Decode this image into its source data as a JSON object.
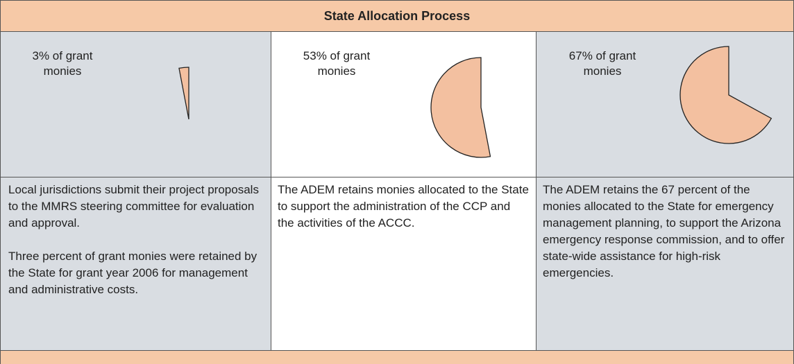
{
  "header": {
    "title": "State Allocation Process"
  },
  "columns": [
    {
      "label": "3% of grant monies",
      "percent": 3,
      "paragraphs": [
        "Local jurisdictions submit their project proposals to the MMRS steering committee for evaluation and approval.",
        "Three percent of grant monies were retained by the State for grant year 2006 for management and administrative costs."
      ]
    },
    {
      "label": "53% of grant monies",
      "percent": 53,
      "paragraphs": [
        "The ADEM retains monies allocated to the State to support the administration of the CCP and the activities of the ACCC."
      ]
    },
    {
      "label": "67% of grant monies",
      "percent": 67,
      "paragraphs": [
        "The ADEM retains the 67 percent of the monies allocated to the State for emergency management planning, to support the Arizona emergency response commission, and to offer state-wide assistance for high-risk emergencies."
      ]
    }
  ]
}
